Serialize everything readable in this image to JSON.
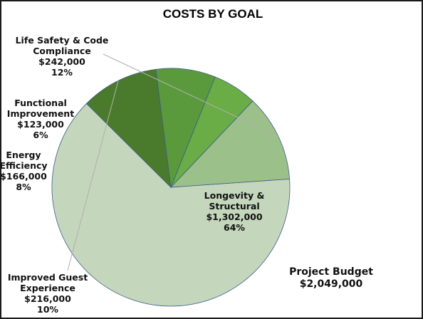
{
  "chart_data": {
    "type": "pie",
    "title": "COSTS BY GOAL",
    "slices": [
      {
        "name": "Longevity & Structural",
        "value": 1302000,
        "value_label": "$1,302,000",
        "percent_label": "64%",
        "color": "#c4d6bb"
      },
      {
        "name": "Improved Guest Experience",
        "value": 216000,
        "value_label": "$216,000",
        "percent_label": "10%",
        "color": "#4a7a2c"
      },
      {
        "name": "Energy Efficiency",
        "value": 166000,
        "value_label": "$166,000",
        "percent_label": "8%",
        "color": "#5a9a3c"
      },
      {
        "name": "Functional Improvement",
        "value": 123000,
        "value_label": "$123,000",
        "percent_label": "6%",
        "color": "#6aac45"
      },
      {
        "name": "Life Safety & Code Compliance",
        "value": 242000,
        "value_label": "$242,000",
        "percent_label": "12%",
        "color": "#9cc08a"
      }
    ],
    "label_lines": {
      "longevity": [
        "Longevity &",
        "Structural"
      ],
      "guest": [
        "Improved Guest",
        "Experience"
      ],
      "energy": [
        "Energy",
        "Efficiency"
      ],
      "functional": [
        "Functional",
        "Improvement"
      ],
      "life_safety": [
        "Life Safety & Code",
        "Compliance"
      ]
    },
    "annotation": {
      "title": "Project Budget",
      "value": "$2,049,000"
    },
    "colors": {
      "slice_border": "#3b5f8a",
      "leader_line": "#b0b0b0"
    }
  }
}
